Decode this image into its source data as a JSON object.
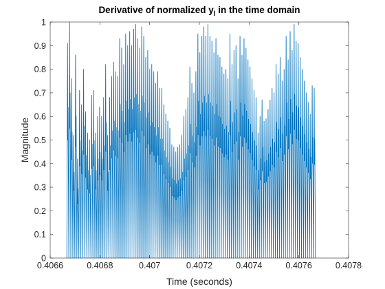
{
  "chart_data": {
    "type": "line",
    "title": "Derivative of normalized y",
    "title_subscript": "l",
    "title_suffix": " in the time domain",
    "xlabel": "Time (seconds)",
    "ylabel": "Magnitude",
    "xlim": [
      0.4066,
      0.4078
    ],
    "ylim": [
      0,
      1
    ],
    "xticks": [
      0.4066,
      0.4068,
      0.407,
      0.4072,
      0.4074,
      0.4076,
      0.4078
    ],
    "xtick_labels": [
      "0.4066",
      "0.4068",
      "0.407",
      "0.4072",
      "0.4074",
      "0.4076",
      "0.4078"
    ],
    "yticks": [
      0,
      0.1,
      0.2,
      0.3,
      0.4,
      0.5,
      0.6,
      0.7,
      0.8,
      0.9,
      1
    ],
    "ytick_labels": [
      "0",
      "0.1",
      "0.2",
      "0.3",
      "0.4",
      "0.5",
      "0.6",
      "0.7",
      "0.8",
      "0.9",
      "1"
    ],
    "grid": false,
    "box": true,
    "series": [
      {
        "color": "#0072BD",
        "x_start": 0.406667,
        "x_end": 0.407667,
        "baseline": 0,
        "peaks": [
          0.91,
          1.0,
          0.76,
          0.52,
          0.86,
          0.42,
          0.71,
          0.65,
          0.8,
          0.62,
          0.53,
          0.5,
          0.69,
          0.71,
          0.53,
          0.6,
          0.64,
          0.6,
          0.68,
          0.82,
          0.52,
          0.68,
          0.77,
          0.83,
          0.79,
          0.77,
          0.93,
          0.89,
          0.82,
          0.95,
          0.9,
          0.96,
          0.9,
          0.97,
          0.99,
          0.93,
          0.89,
          0.98,
          0.94,
          0.85,
          0.88,
          0.8,
          0.82,
          0.79,
          0.74,
          0.79,
          0.72,
          0.72,
          0.65,
          0.61,
          0.58,
          0.55,
          0.48,
          0.47,
          0.45,
          0.47,
          0.48,
          0.52,
          0.6,
          0.63,
          0.68,
          0.81,
          0.74,
          0.7,
          0.79,
          0.95,
          0.87,
          0.94,
          0.98,
          0.94,
          0.99,
          0.94,
          0.92,
          0.87,
          0.93,
          0.86,
          0.85,
          0.81,
          0.78,
          0.8,
          0.76,
          0.95,
          0.82,
          0.88,
          0.9,
          0.76,
          0.94,
          0.86,
          0.93,
          0.89,
          0.84,
          0.81,
          0.76,
          0.71,
          0.68,
          0.53,
          0.6,
          0.67,
          0.58,
          0.59,
          0.63,
          0.67,
          0.72,
          0.7,
          0.82,
          0.78,
          0.85,
          0.75,
          0.8,
          0.94,
          0.84,
          0.96,
          0.88,
          0.99,
          0.92,
          0.91,
          0.85,
          0.8,
          0.75,
          0.7,
          0.66,
          0.61,
          0.73,
          0.72
        ]
      }
    ]
  }
}
